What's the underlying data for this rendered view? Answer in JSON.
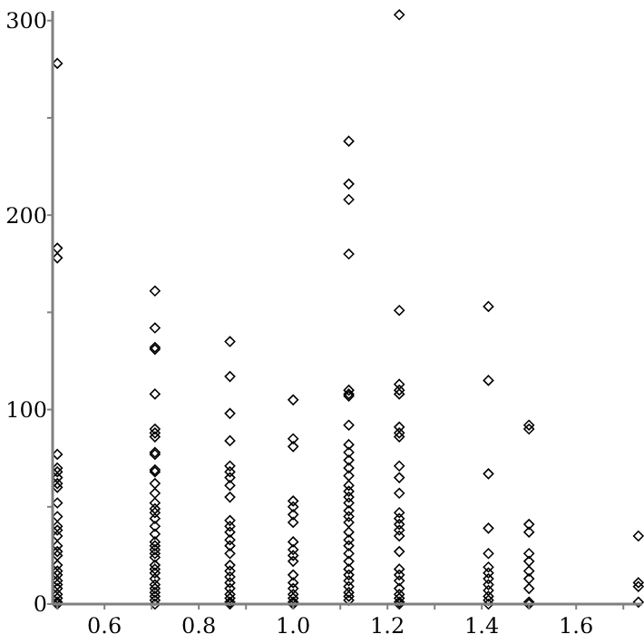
{
  "chart_data": {
    "type": "scatter",
    "marker": "diamond",
    "grid": false,
    "xlim": [
      0.49,
      1.74
    ],
    "ylim": [
      0,
      305
    ],
    "xticks": [
      {
        "value": 0.5,
        "label": null
      },
      {
        "value": 0.6,
        "label": "0.6"
      },
      {
        "value": 0.7,
        "label": null
      },
      {
        "value": 0.8,
        "label": "0.8"
      },
      {
        "value": 0.9,
        "label": null
      },
      {
        "value": 1.0,
        "label": "1.0"
      },
      {
        "value": 1.1,
        "label": null
      },
      {
        "value": 1.2,
        "label": "1.2"
      },
      {
        "value": 1.3,
        "label": null
      },
      {
        "value": 1.4,
        "label": "1.4"
      },
      {
        "value": 1.5,
        "label": null
      },
      {
        "value": 1.6,
        "label": "1.6"
      },
      {
        "value": 1.7,
        "label": null
      }
    ],
    "yticks": [
      0,
      {
        "value": 50,
        "label": null
      },
      100,
      {
        "value": 150,
        "label": null
      },
      200,
      {
        "value": 250,
        "label": null
      },
      300
    ],
    "series": [
      {
        "color": "#000000",
        "x": [
          0.5,
          0.5,
          0.5,
          0.5,
          0.5,
          0.5,
          0.5,
          0.5,
          0.5,
          0.5,
          0.5,
          0.5,
          0.5,
          0.5,
          0.5,
          0.5,
          0.5,
          0.5,
          0.5,
          0.5,
          0.5,
          0.5,
          0.5,
          0.5,
          0.5,
          0.5,
          0.5,
          0.707,
          0.707,
          0.707,
          0.707,
          0.707,
          0.707,
          0.707,
          0.707,
          0.707,
          0.707,
          0.707,
          0.707,
          0.707,
          0.707,
          0.707,
          0.707,
          0.707,
          0.707,
          0.707,
          0.707,
          0.707,
          0.707,
          0.707,
          0.707,
          0.707,
          0.707,
          0.707,
          0.707,
          0.707,
          0.707,
          0.707,
          0.707,
          0.707,
          0.707,
          0.707,
          0.866,
          0.866,
          0.866,
          0.866,
          0.866,
          0.866,
          0.866,
          0.866,
          0.866,
          0.866,
          0.866,
          0.866,
          0.866,
          0.866,
          0.866,
          0.866,
          0.866,
          0.866,
          0.866,
          0.866,
          0.866,
          0.866,
          0.866,
          0.866,
          1.0,
          1.0,
          1.0,
          1.0,
          1.0,
          1.0,
          1.0,
          1.0,
          1.0,
          1.0,
          1.0,
          1.0,
          1.0,
          1.0,
          1.0,
          1.0,
          1.0,
          1.0,
          1.118,
          1.118,
          1.118,
          1.118,
          1.118,
          1.118,
          1.118,
          1.118,
          1.118,
          1.118,
          1.118,
          1.118,
          1.118,
          1.118,
          1.118,
          1.118,
          1.118,
          1.118,
          1.118,
          1.118,
          1.118,
          1.118,
          1.118,
          1.118,
          1.118,
          1.118,
          1.118,
          1.118,
          1.118,
          1.118,
          1.118,
          1.118,
          1.225,
          1.225,
          1.225,
          1.225,
          1.225,
          1.225,
          1.225,
          1.225,
          1.225,
          1.225,
          1.225,
          1.225,
          1.225,
          1.225,
          1.225,
          1.225,
          1.225,
          1.225,
          1.225,
          1.225,
          1.225,
          1.225,
          1.225,
          1.225,
          1.225,
          1.414,
          1.414,
          1.414,
          1.414,
          1.414,
          1.414,
          1.414,
          1.414,
          1.414,
          1.414,
          1.414,
          1.414,
          1.414,
          1.5,
          1.5,
          1.5,
          1.5,
          1.5,
          1.5,
          1.5,
          1.5,
          1.5,
          1.5,
          1.5,
          1.732,
          1.732,
          1.732,
          1.732
        ],
        "values": [
          278,
          183,
          178,
          77,
          70,
          68,
          65,
          62,
          60,
          52,
          45,
          40,
          38,
          35,
          30,
          27,
          25,
          20,
          17,
          15,
          12,
          10,
          8,
          5,
          3,
          1,
          0,
          161,
          142,
          132,
          131,
          108,
          90,
          88,
          86,
          78,
          77,
          69,
          68,
          62,
          57,
          52,
          49,
          47,
          44,
          40,
          36,
          32,
          30,
          28,
          26,
          24,
          20,
          18,
          16,
          13,
          10,
          8,
          6,
          4,
          2,
          0,
          135,
          117,
          98,
          84,
          71,
          68,
          65,
          61,
          55,
          43,
          40,
          37,
          33,
          30,
          26,
          20,
          17,
          14,
          11,
          8,
          5,
          3,
          1,
          0,
          105,
          85,
          81,
          53,
          50,
          46,
          42,
          32,
          28,
          25,
          22,
          15,
          11,
          8,
          5,
          3,
          1,
          0,
          238,
          216,
          208,
          180,
          110,
          108,
          107,
          92,
          82,
          78,
          74,
          70,
          66,
          61,
          58,
          55,
          52,
          48,
          45,
          42,
          37,
          33,
          30,
          26,
          22,
          18,
          15,
          12,
          9,
          6,
          4,
          2,
          303,
          151,
          113,
          110,
          108,
          91,
          88,
          86,
          71,
          65,
          57,
          47,
          44,
          41,
          38,
          35,
          27,
          18,
          15,
          12,
          8,
          5,
          3,
          1,
          0,
          153,
          115,
          67,
          39,
          26,
          19,
          16,
          13,
          10,
          7,
          4,
          2,
          0,
          92,
          90,
          41,
          37,
          26,
          22,
          17,
          13,
          8,
          1,
          0,
          35,
          11,
          9,
          1
        ]
      }
    ]
  }
}
